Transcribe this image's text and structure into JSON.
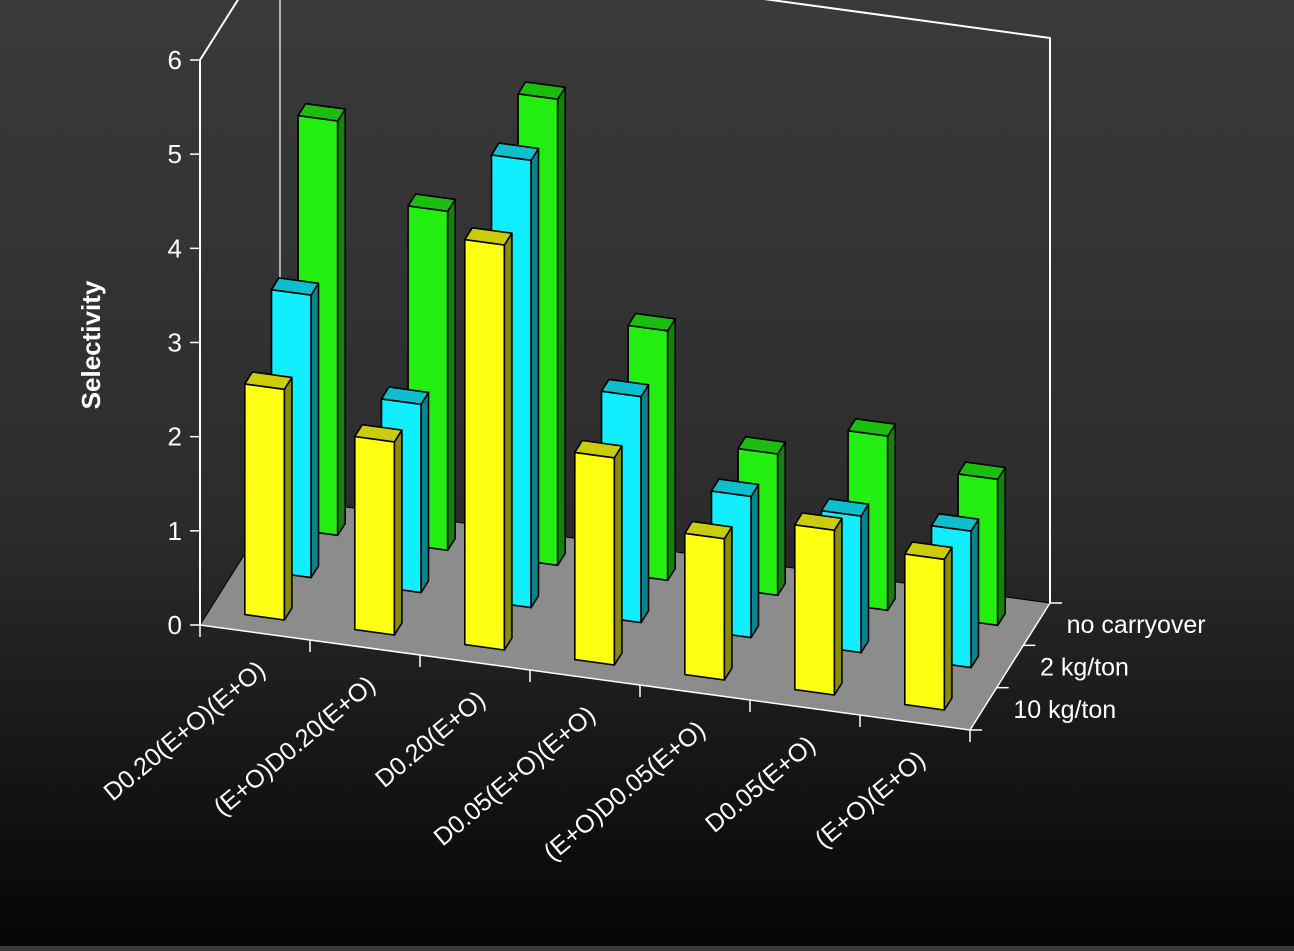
{
  "chart_data": {
    "type": "bar",
    "style": "3d-clustered",
    "title": "",
    "ylabel": "Selectivity",
    "xlabel": "",
    "ylim": [
      0,
      6
    ],
    "yticks": [
      "0",
      "1",
      "2",
      "3",
      "4",
      "5",
      "6"
    ],
    "categories": [
      "D0.20(E+O)(E+O)",
      "(E+O)D0.20(E+O)",
      "D0.20(E+O)",
      "D0.05(E+O)(E+O)",
      "(E+O)D0.05(E+O)",
      "D0.05(E+O)",
      "(E+O)(E+O)"
    ],
    "series": [
      {
        "name": "no carryover",
        "color": "#22ee11",
        "values": [
          4.4,
          3.6,
          4.95,
          2.65,
          1.5,
          1.85,
          1.55
        ]
      },
      {
        "name": "2 kg/ton",
        "color": "#11eeff",
        "values": [
          3.0,
          2.0,
          4.75,
          2.4,
          1.5,
          1.45,
          1.45
        ]
      },
      {
        "name": "10 kg/ton",
        "color": "#ffff11",
        "values": [
          2.45,
          2.05,
          4.3,
          2.2,
          1.5,
          1.75,
          1.6
        ]
      }
    ],
    "legend_placement": "right-depth-axis",
    "grid": false,
    "background": "#2e2e2e",
    "floor_color": "#8c8c8c"
  }
}
